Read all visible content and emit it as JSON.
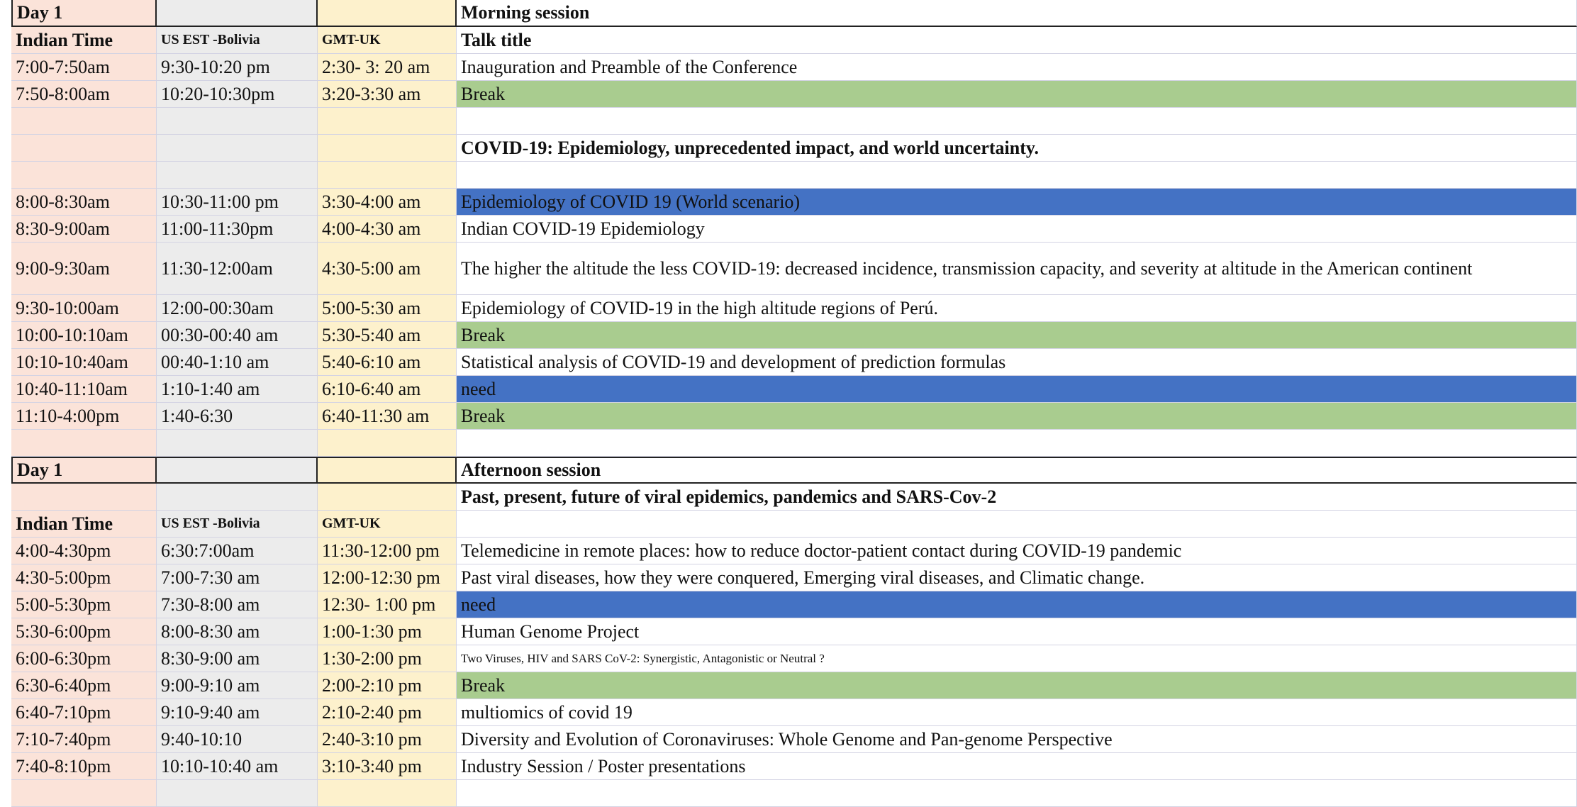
{
  "morning": {
    "day_label": "Day 1",
    "session_title": "Morning session",
    "header": {
      "col1": "Indian Time",
      "col2": "US EST -Bolivia",
      "col3": "GMT-UK",
      "col4": "Talk title"
    },
    "rows": [
      {
        "ist": "7:00-7:50am",
        "est": "9:30-10:20 pm",
        "gmt": "2:30- 3: 20 am",
        "title": "Inauguration and Preamble of the  Conference"
      },
      {
        "ist": "7:50-8:00am",
        "est": "10:20-10:30pm",
        "gmt": "3:20-3:30 am",
        "title": "Break"
      },
      {
        "title": "COVID-19: Epidemiology, unprecedented impact, and world uncertainty."
      },
      {
        "ist": "8:00-8:30am",
        "est": "10:30-11:00 pm",
        "gmt": "3:30-4:00 am",
        "title": "Epidemiology of COVID 19 (World scenario)"
      },
      {
        "ist": "8:30-9:00am",
        "est": "11:00-11:30pm",
        "gmt": "4:00-4:30 am",
        "title": "Indian COVID-19 Epidemiology"
      },
      {
        "ist": "9:00-9:30am",
        "est": "11:30-12:00am",
        "gmt": "4:30-5:00 am",
        "title": "The higher the altitude the less COVID-19: decreased incidence, transmission capacity, and severity at altitude in the American continent"
      },
      {
        "ist": "9:30-10:00am",
        "est": "12:00-00:30am",
        "gmt": "5:00-5:30 am",
        "title": "Epidemiology of COVID-19 in the high altitude regions of Perú."
      },
      {
        "ist": "10:00-10:10am",
        "est": "00:30-00:40 am",
        "gmt": "5:30-5:40 am",
        "title": "Break"
      },
      {
        "ist": "10:10-10:40am",
        "est": "00:40-1:10 am",
        "gmt": "5:40-6:10 am",
        "title": "Statistical analysis of COVID-19 and development of prediction formulas"
      },
      {
        "ist": "10:40-11:10am",
        "est": "1:10-1:40 am",
        "gmt": "6:10-6:40 am",
        "title": "need"
      },
      {
        "ist": "11:10-4:00pm",
        "est": "1:40-6:30",
        "gmt": "6:40-11:30 am",
        "title": "Break"
      }
    ]
  },
  "afternoon": {
    "day_label": "Day 1",
    "session_title": "Afternoon session",
    "theme": "Past, present, future of viral epidemics, pandemics and SARS-Cov-2",
    "header": {
      "col1": "Indian Time",
      "col2": "US EST -Bolivia",
      "col3": "GMT-UK"
    },
    "rows": [
      {
        "ist": "4:00-4:30pm",
        "est": "6:30:7:00am",
        "gmt": "11:30-12:00 pm",
        "title": "Telemedicine in remote places: how to reduce doctor-patient contact during COVID-19 pandemic"
      },
      {
        "ist": "4:30-5:00pm",
        "est": "7:00-7:30 am",
        "gmt": "12:00-12:30 pm",
        "title": "Past viral diseases, how they were conquered,  Emerging viral diseases, and Climatic change."
      },
      {
        "ist": "5:00-5:30pm",
        "est": "7:30-8:00 am",
        "gmt": "12:30- 1:00 pm",
        "title": "need"
      },
      {
        "ist": "5:30-6:00pm",
        "est": "8:00-8:30 am",
        "gmt": "1:00-1:30 pm",
        "title": "Human Genome Project"
      },
      {
        "ist": "6:00-6:30pm",
        "est": "8:30-9:00 am",
        "gmt": "1:30-2:00 pm",
        "title": "Two Viruses, HIV and SARS CoV-2:  Synergistic, Antagonistic or Neutral ?"
      },
      {
        "ist": "6:30-6:40pm",
        "est": "9:00-9:10 am",
        "gmt": "2:00-2:10 pm",
        "title": "Break"
      },
      {
        "ist": "6:40-7:10pm",
        "est": "9:10-9:40 am",
        "gmt": "2:10-2:40 pm",
        "title": "multiomics of covid 19"
      },
      {
        "ist": "7:10-7:40pm",
        "est": "9:40-10:10",
        "gmt": "2:40-3:10 pm",
        "title": "Diversity and Evolution of Coronaviruses: Whole Genome and Pan-genome Perspective"
      },
      {
        "ist": "7:40-8:10pm",
        "est": "10:10-10:40 am",
        "gmt": "3:10-3:40 pm",
        "title": "Industry Session / Poster presentations"
      }
    ]
  },
  "colors": {
    "indian_col": "#fbe3d9",
    "us_col": "#ececec",
    "uk_col": "#fdf1cc",
    "break_fill": "#a9cc8f",
    "need_fill": "#4472c4"
  }
}
